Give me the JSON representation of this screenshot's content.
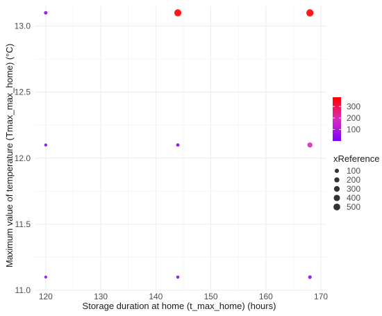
{
  "chart_data": {
    "type": "scatter",
    "title": "",
    "xlabel": "Storage duration at home (t_max_home) (hours)",
    "ylabel": "Maximum value of temperature (Tmax_max_home) (°C)",
    "xlim": [
      118,
      171
    ],
    "ylim": [
      11.0,
      13.15
    ],
    "x_ticks": [
      120,
      130,
      140,
      150,
      160,
      170
    ],
    "y_ticks": [
      11.0,
      11.5,
      12.0,
      12.5,
      13.0
    ],
    "x_tick_labels": [
      "120",
      "130",
      "140",
      "150",
      "160",
      "170"
    ],
    "y_tick_labels": [
      "11.0",
      "11.5",
      "12.0",
      "12.5",
      "13.0"
    ],
    "grid": true,
    "points": [
      {
        "x": 120,
        "y": 13.1,
        "xReference": 40
      },
      {
        "x": 144,
        "y": 13.1,
        "xReference": 560
      },
      {
        "x": 168,
        "y": 13.1,
        "xReference": 600
      },
      {
        "x": 120,
        "y": 12.1,
        "xReference": 15
      },
      {
        "x": 144,
        "y": 12.1,
        "xReference": 30
      },
      {
        "x": 168,
        "y": 12.1,
        "xReference": 200
      },
      {
        "x": 120,
        "y": 11.1,
        "xReference": 10
      },
      {
        "x": 144,
        "y": 11.1,
        "xReference": 20
      },
      {
        "x": 168,
        "y": 11.1,
        "xReference": 50
      }
    ],
    "color_legend": {
      "title": "",
      "min": 0,
      "max": 380,
      "low_color": "#7c00ff",
      "mid_color": "#d92bbb",
      "high_color": "#ff0000",
      "ticks": [
        100,
        200,
        300
      ],
      "tick_labels": [
        "100",
        "200",
        "300"
      ]
    },
    "size_legend": {
      "title": "xReference",
      "values": [
        100,
        200,
        300,
        400,
        500
      ],
      "labels": [
        "100",
        "200",
        "300",
        "400",
        "500"
      ],
      "max_value": 600,
      "point_color": "#333333"
    }
  }
}
